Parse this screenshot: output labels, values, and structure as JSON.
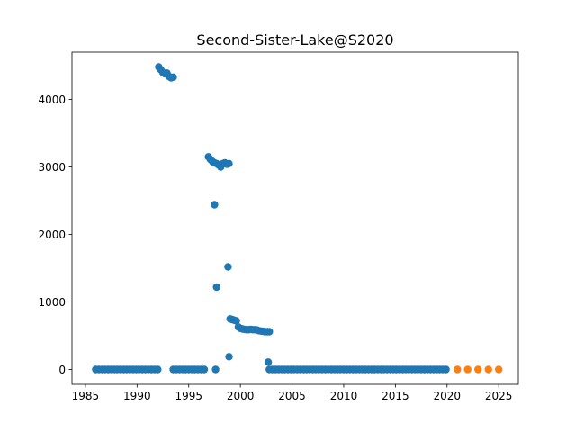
{
  "chart_data": {
    "type": "scatter",
    "title": "Second-Sister-Lake@S2020",
    "xlabel": "",
    "ylabel": "",
    "xlim": [
      1983.7,
      2026.9
    ],
    "ylim": [
      -220,
      4700
    ],
    "xticks": [
      1985,
      1990,
      1995,
      2000,
      2005,
      2010,
      2015,
      2020,
      2025
    ],
    "yticks": [
      0,
      1000,
      2000,
      3000,
      4000
    ],
    "grid": false,
    "legend": "none",
    "series": [
      {
        "color": "#1f77b4",
        "points": [
          [
            1986.0,
            0
          ],
          [
            1986.3,
            0
          ],
          [
            1986.6,
            0
          ],
          [
            1986.9,
            0
          ],
          [
            1987.2,
            0
          ],
          [
            1987.5,
            0
          ],
          [
            1987.8,
            0
          ],
          [
            1988.1,
            0
          ],
          [
            1988.4,
            0
          ],
          [
            1988.7,
            0
          ],
          [
            1989.0,
            0
          ],
          [
            1989.3,
            0
          ],
          [
            1989.6,
            0
          ],
          [
            1989.9,
            0
          ],
          [
            1990.2,
            0
          ],
          [
            1990.5,
            0
          ],
          [
            1990.8,
            0
          ],
          [
            1991.1,
            0
          ],
          [
            1991.4,
            0
          ],
          [
            1991.7,
            0
          ],
          [
            1992.0,
            0
          ],
          [
            1992.1,
            4480
          ],
          [
            1992.3,
            4440
          ],
          [
            1992.5,
            4400
          ],
          [
            1992.7,
            4380
          ],
          [
            1992.9,
            4390
          ],
          [
            1993.1,
            4340
          ],
          [
            1993.3,
            4320
          ],
          [
            1993.5,
            4330
          ],
          [
            1993.5,
            0
          ],
          [
            1993.8,
            0
          ],
          [
            1994.1,
            0
          ],
          [
            1994.4,
            0
          ],
          [
            1994.7,
            0
          ],
          [
            1995.0,
            0
          ],
          [
            1995.3,
            0
          ],
          [
            1995.6,
            0
          ],
          [
            1995.9,
            0
          ],
          [
            1996.2,
            0
          ],
          [
            1996.5,
            0
          ],
          [
            1996.9,
            3150
          ],
          [
            1997.1,
            3110
          ],
          [
            1997.3,
            3080
          ],
          [
            1997.5,
            3060
          ],
          [
            1997.7,
            3050
          ],
          [
            1997.9,
            3030
          ],
          [
            1998.1,
            3000
          ],
          [
            1998.3,
            3050
          ],
          [
            1998.5,
            3060
          ],
          [
            1998.7,
            3040
          ],
          [
            1998.9,
            3050
          ],
          [
            1997.5,
            2440
          ],
          [
            1997.7,
            1220
          ],
          [
            1997.6,
            0
          ],
          [
            1998.8,
            1520
          ],
          [
            1998.9,
            190
          ],
          [
            1999.0,
            750
          ],
          [
            1999.2,
            740
          ],
          [
            1999.4,
            730
          ],
          [
            1999.6,
            720
          ],
          [
            1999.8,
            630
          ],
          [
            2000.0,
            610
          ],
          [
            2000.2,
            600
          ],
          [
            2000.4,
            595
          ],
          [
            2000.6,
            590
          ],
          [
            2000.8,
            590
          ],
          [
            2001.0,
            595
          ],
          [
            2001.2,
            590
          ],
          [
            2001.4,
            590
          ],
          [
            2001.6,
            585
          ],
          [
            2001.8,
            575
          ],
          [
            2002.0,
            570
          ],
          [
            2002.2,
            565
          ],
          [
            2002.4,
            560
          ],
          [
            2002.6,
            560
          ],
          [
            2002.8,
            560
          ],
          [
            2002.7,
            110
          ],
          [
            2002.8,
            0
          ],
          [
            2003.1,
            0
          ],
          [
            2003.4,
            0
          ],
          [
            2003.7,
            0
          ],
          [
            2004.0,
            0
          ],
          [
            2004.3,
            0
          ],
          [
            2004.6,
            0
          ],
          [
            2004.9,
            0
          ],
          [
            2005.2,
            0
          ],
          [
            2005.5,
            0
          ],
          [
            2005.8,
            0
          ],
          [
            2006.1,
            0
          ],
          [
            2006.4,
            0
          ],
          [
            2006.7,
            0
          ],
          [
            2007.0,
            0
          ],
          [
            2007.3,
            0
          ],
          [
            2007.6,
            0
          ],
          [
            2007.9,
            0
          ],
          [
            2008.2,
            0
          ],
          [
            2008.5,
            0
          ],
          [
            2008.8,
            0
          ],
          [
            2009.1,
            0
          ],
          [
            2009.4,
            0
          ],
          [
            2009.7,
            0
          ],
          [
            2010.0,
            0
          ],
          [
            2010.3,
            0
          ],
          [
            2010.6,
            0
          ],
          [
            2010.9,
            0
          ],
          [
            2011.2,
            0
          ],
          [
            2011.5,
            0
          ],
          [
            2011.8,
            0
          ],
          [
            2012.1,
            0
          ],
          [
            2012.4,
            0
          ],
          [
            2012.7,
            0
          ],
          [
            2013.0,
            0
          ],
          [
            2013.3,
            0
          ],
          [
            2013.6,
            0
          ],
          [
            2013.9,
            0
          ],
          [
            2014.2,
            0
          ],
          [
            2014.5,
            0
          ],
          [
            2014.8,
            0
          ],
          [
            2015.1,
            0
          ],
          [
            2015.4,
            0
          ],
          [
            2015.7,
            0
          ],
          [
            2016.0,
            0
          ],
          [
            2016.3,
            0
          ],
          [
            2016.6,
            0
          ],
          [
            2016.9,
            0
          ],
          [
            2017.2,
            0
          ],
          [
            2017.5,
            0
          ],
          [
            2017.8,
            0
          ],
          [
            2018.1,
            0
          ],
          [
            2018.4,
            0
          ],
          [
            2018.7,
            0
          ],
          [
            2019.0,
            0
          ],
          [
            2019.3,
            0
          ],
          [
            2019.6,
            0
          ],
          [
            2019.9,
            0
          ]
        ]
      },
      {
        "color": "#ff7f0e",
        "points": [
          [
            2021,
            0
          ],
          [
            2022,
            0
          ],
          [
            2023,
            0
          ],
          [
            2024,
            0
          ],
          [
            2025,
            0
          ]
        ]
      }
    ]
  }
}
